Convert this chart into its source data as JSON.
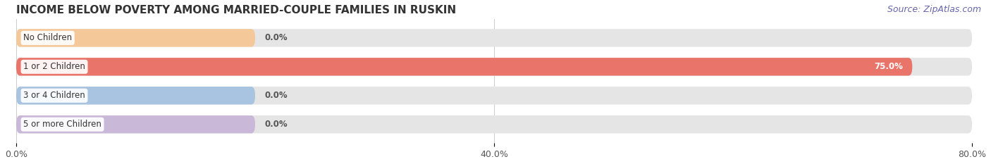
{
  "title": "INCOME BELOW POVERTY AMONG MARRIED-COUPLE FAMILIES IN RUSKIN",
  "source": "Source: ZipAtlas.com",
  "categories": [
    "No Children",
    "1 or 2 Children",
    "3 or 4 Children",
    "5 or more Children"
  ],
  "values": [
    0.0,
    75.0,
    0.0,
    0.0
  ],
  "bar_colors": [
    "#f5c89a",
    "#e8746a",
    "#a8c4e0",
    "#c9b8d8"
  ],
  "value_label_colors": [
    "#555555",
    "#ffffff",
    "#555555",
    "#555555"
  ],
  "xlim": [
    0,
    80
  ],
  "xticks": [
    0.0,
    40.0,
    80.0
  ],
  "xtick_labels": [
    "0.0%",
    "40.0%",
    "80.0%"
  ],
  "background_color": "#ffffff",
  "bar_bg_color": "#e5e5e5",
  "title_fontsize": 11,
  "label_fontsize": 8.5,
  "tick_fontsize": 9,
  "source_fontsize": 9,
  "bar_height": 0.62,
  "colored_portion_for_zero": 20.0
}
